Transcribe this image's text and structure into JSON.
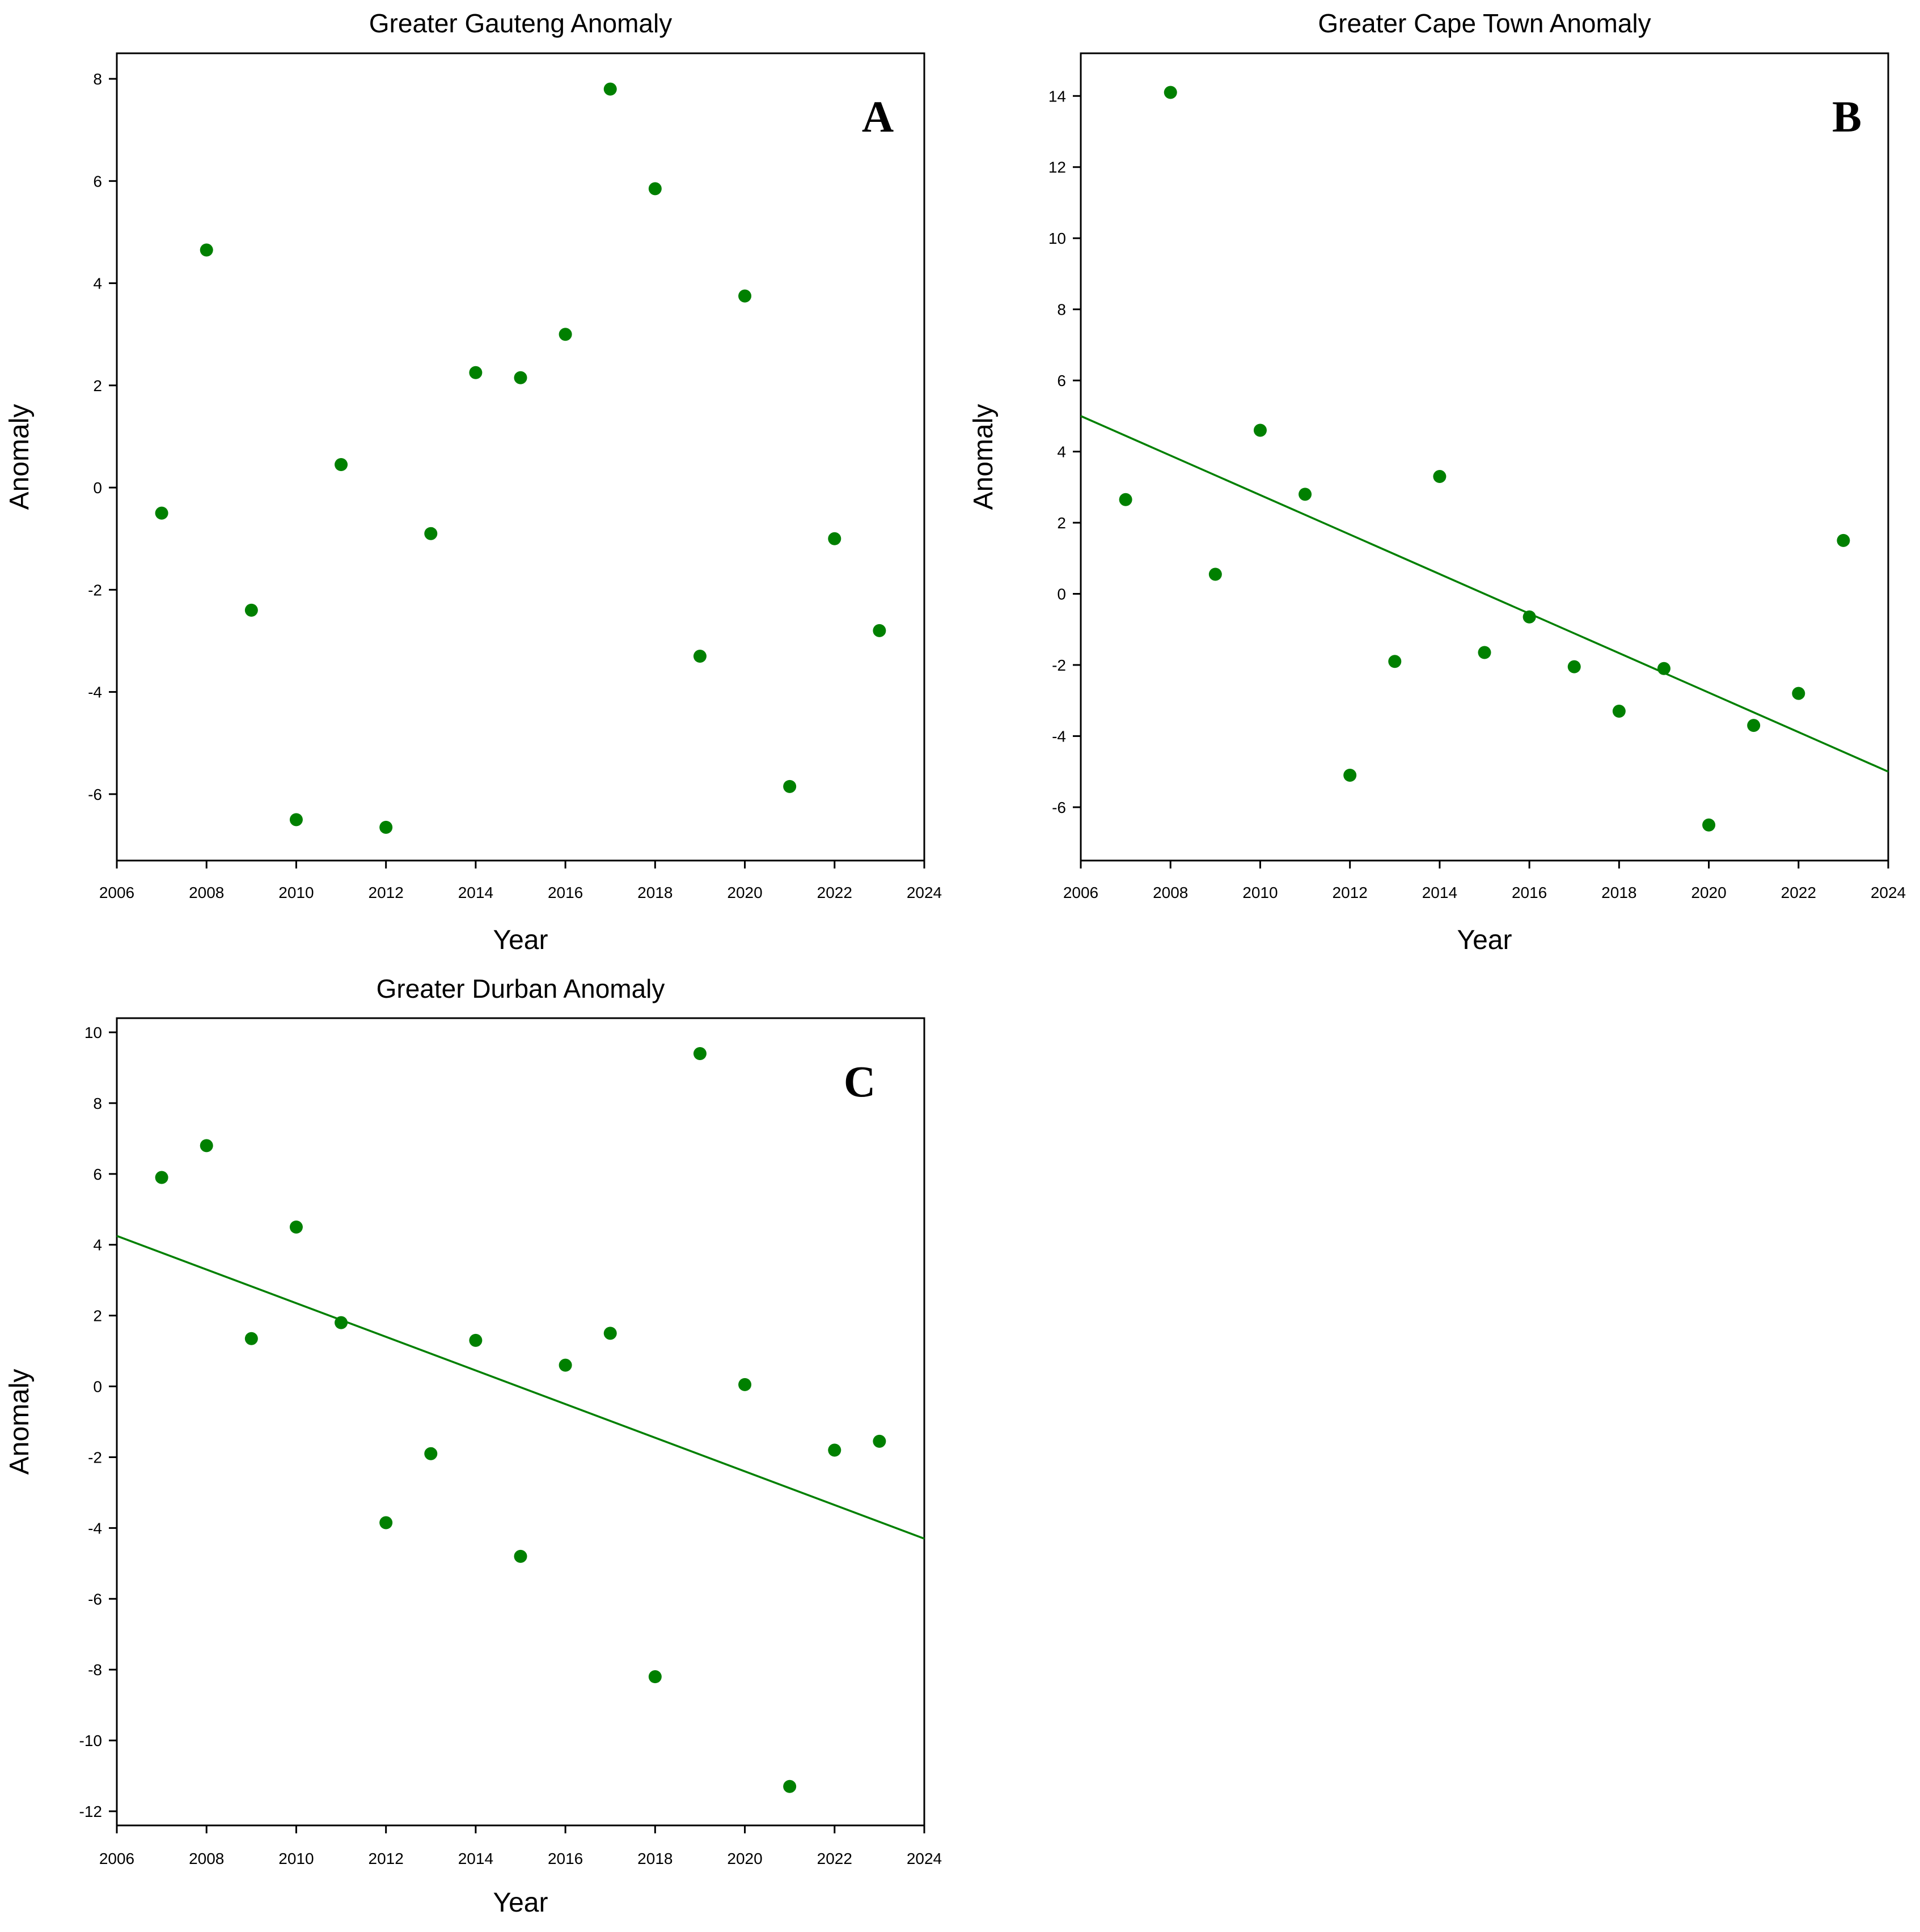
{
  "colors": {
    "marker": "#008000",
    "line": "#008000",
    "axis": "#000000"
  },
  "chart_data": [
    {
      "type": "scatter",
      "title": "Greater Gauteng Anomaly",
      "panel_label": "A",
      "xlabel": "Year",
      "ylabel": "Anomaly",
      "xlim": [
        2006,
        2024
      ],
      "ylim": [
        -7.3,
        8.5
      ],
      "xticks": [
        2006,
        2008,
        2010,
        2012,
        2014,
        2016,
        2018,
        2020,
        2022,
        2024
      ],
      "yticks": [
        8,
        6,
        4,
        2,
        0,
        -2,
        -4,
        -6
      ],
      "x": [
        2007,
        2008,
        2009,
        2010,
        2011,
        2012,
        2013,
        2014,
        2015,
        2016,
        2017,
        2018,
        2019,
        2020,
        2021,
        2022,
        2023
      ],
      "y": [
        -0.5,
        4.65,
        -2.4,
        -6.5,
        0.45,
        -6.65,
        -0.9,
        2.25,
        2.15,
        3.0,
        7.8,
        5.85,
        -3.3,
        3.75,
        -5.85,
        -1.0,
        -2.8
      ],
      "trendline": null
    },
    {
      "type": "scatter",
      "title": "Greater Cape Town Anomaly",
      "panel_label": "B",
      "xlabel": "Year",
      "ylabel": "Anomaly",
      "xlim": [
        2006,
        2024
      ],
      "ylim": [
        -7.5,
        15.2
      ],
      "xticks": [
        2006,
        2008,
        2010,
        2012,
        2014,
        2016,
        2018,
        2020,
        2022,
        2024
      ],
      "yticks": [
        14,
        12,
        10,
        8,
        6,
        4,
        2,
        0,
        -2,
        -4,
        -6
      ],
      "x": [
        2007,
        2008,
        2009,
        2010,
        2011,
        2012,
        2013,
        2014,
        2015,
        2016,
        2017,
        2018,
        2019,
        2020,
        2021,
        2022,
        2023
      ],
      "y": [
        2.65,
        14.1,
        0.55,
        4.6,
        2.8,
        -5.1,
        -1.9,
        3.3,
        -1.65,
        -0.65,
        -2.05,
        -3.3,
        -2.1,
        -6.5,
        -3.7,
        -2.8,
        1.5
      ],
      "trendline": {
        "x": [
          2006,
          2024
        ],
        "y": [
          5.0,
          -5.0
        ]
      }
    },
    {
      "type": "scatter",
      "title": "Greater Durban Anomaly",
      "panel_label": "C",
      "xlabel": "Year",
      "ylabel": "Anomaly",
      "xlim": [
        2006,
        2024
      ],
      "ylim": [
        -12.4,
        10.4
      ],
      "xticks": [
        2006,
        2008,
        2010,
        2012,
        2014,
        2016,
        2018,
        2020,
        2022,
        2024
      ],
      "yticks": [
        10,
        8,
        6,
        4,
        2,
        0,
        -2,
        -4,
        -6,
        -8,
        -10,
        -12
      ],
      "x": [
        2007,
        2008,
        2009,
        2010,
        2011,
        2012,
        2013,
        2014,
        2015,
        2016,
        2017,
        2018,
        2019,
        2020,
        2021,
        2022,
        2023
      ],
      "y": [
        5.9,
        6.8,
        1.35,
        4.5,
        1.8,
        -3.85,
        -1.9,
        1.3,
        -4.8,
        0.6,
        1.5,
        -8.2,
        9.4,
        0.05,
        -11.3,
        -1.8,
        -1.55
      ],
      "trendline": {
        "x": [
          2006,
          2024
        ],
        "y": [
          4.25,
          -4.3
        ]
      }
    }
  ]
}
